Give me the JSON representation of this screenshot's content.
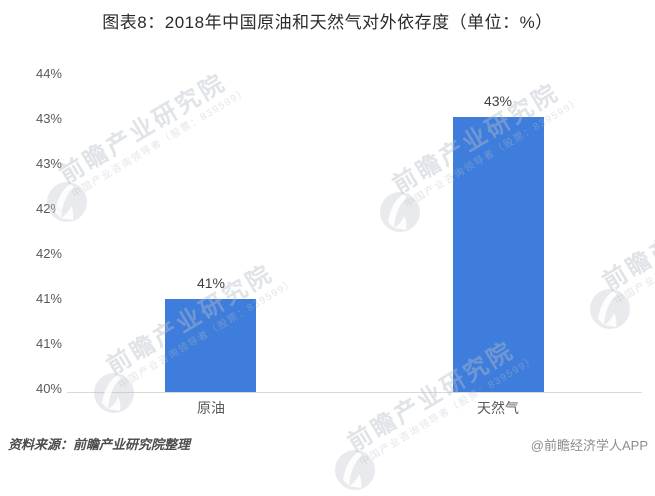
{
  "title": "图表8：2018年中国原油和天然气对外依存度（单位：%）",
  "chart_data": {
    "type": "bar",
    "categories": [
      "原油",
      "天然气"
    ],
    "values": [
      41,
      43
    ],
    "values_precise_estimate": [
      41.14,
      43.45
    ],
    "value_labels": [
      "41%",
      "43%"
    ],
    "title": "图表8：2018年中国原油和天然气对外依存度（单位：%）",
    "xlabel": "",
    "ylabel": "",
    "unit": "%",
    "ylim": [
      40,
      44
    ],
    "y_tick_labels_top_to_bottom": [
      "44%",
      "43%",
      "43%",
      "42%",
      "42%",
      "41%",
      "41%",
      "40%"
    ],
    "grid": "off",
    "legend": "none"
  },
  "colors": {
    "bar": "#3E7DDB",
    "axis_line": "#D9D9D9",
    "watermark_gray": "#E7E9ED"
  },
  "watermark": {
    "brand_text": "前瞻产业研究院",
    "sub_text": "中国产业咨询领导者（股票：839599）",
    "logo_icon": "qianzhan-swoosh-logo"
  },
  "footer": {
    "source_note": "资料来源：前瞻产业研究院整理",
    "credit_note": "@前瞻经济学人APP"
  }
}
